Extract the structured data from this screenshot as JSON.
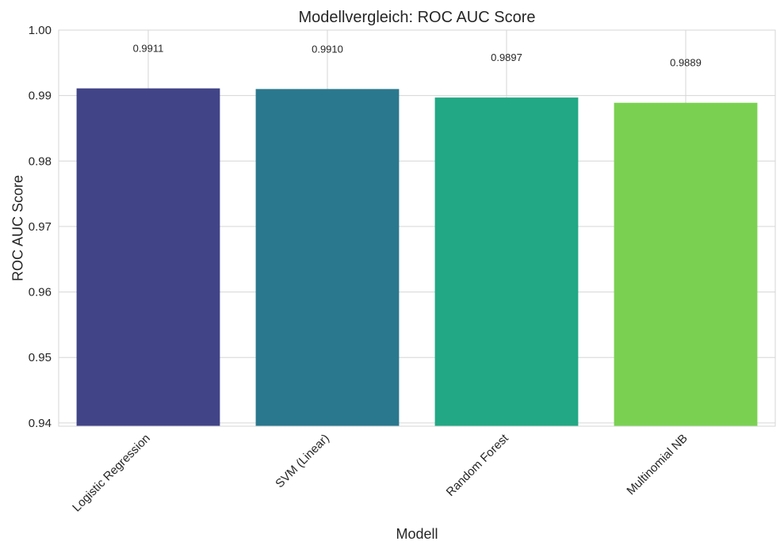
{
  "chart_data": {
    "type": "bar",
    "title": "Modellvergleich: ROC AUC Score",
    "xlabel": "Modell",
    "ylabel": "ROC AUC Score",
    "categories": [
      "Logistic Regression",
      "SVM (Linear)",
      "Random Forest",
      "Multinomial NB"
    ],
    "values": [
      0.9911,
      0.991,
      0.9897,
      0.9889
    ],
    "value_labels": [
      "0.9911",
      "0.9910",
      "0.9897",
      "0.9889"
    ],
    "colors": [
      "#414487",
      "#2a788e",
      "#22a884",
      "#7ad151"
    ],
    "ylim": [
      0.9395,
      1.0
    ],
    "yticks": [
      0.94,
      0.95,
      0.96,
      0.97,
      0.98,
      0.99,
      1.0
    ],
    "ytick_labels": [
      "0.94",
      "0.95",
      "0.96",
      "0.97",
      "0.98",
      "0.99",
      "1.00"
    ],
    "grid": true,
    "legend": "none"
  }
}
